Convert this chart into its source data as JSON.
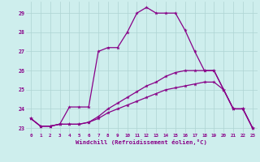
{
  "xlabel": "Windchill (Refroidissement éolien,°C)",
  "background_color": "#ceeeed",
  "grid_color": "#aed4d3",
  "line_color": "#880088",
  "hours": [
    0,
    1,
    2,
    3,
    4,
    5,
    6,
    7,
    8,
    9,
    10,
    11,
    12,
    13,
    14,
    15,
    16,
    17,
    18,
    19,
    20,
    21,
    22,
    23
  ],
  "line1": [
    23.5,
    23.1,
    23.1,
    23.2,
    24.1,
    24.1,
    24.1,
    27.0,
    27.2,
    27.2,
    28.0,
    29.0,
    29.3,
    29.0,
    29.0,
    29.0,
    28.1,
    27.0,
    26.0,
    26.0,
    25.0,
    24.0,
    24.0,
    23.0
  ],
  "line2": [
    23.5,
    23.1,
    23.1,
    23.2,
    23.2,
    23.2,
    23.3,
    23.6,
    24.0,
    24.3,
    24.6,
    24.9,
    25.2,
    25.4,
    25.7,
    25.9,
    26.0,
    26.0,
    26.0,
    26.0,
    25.0,
    24.0,
    24.0,
    23.0
  ],
  "line3": [
    23.5,
    23.1,
    23.1,
    23.2,
    23.2,
    23.2,
    23.3,
    23.5,
    23.8,
    24.0,
    24.2,
    24.4,
    24.6,
    24.8,
    25.0,
    25.1,
    25.2,
    25.3,
    25.4,
    25.4,
    25.0,
    24.0,
    24.0,
    23.0
  ],
  "ylim": [
    22.75,
    29.6
  ],
  "yticks": [
    23,
    24,
    25,
    26,
    27,
    28,
    29
  ],
  "xticks": [
    0,
    1,
    2,
    3,
    4,
    5,
    6,
    7,
    8,
    9,
    10,
    11,
    12,
    13,
    14,
    15,
    16,
    17,
    18,
    19,
    20,
    21,
    22,
    23
  ]
}
